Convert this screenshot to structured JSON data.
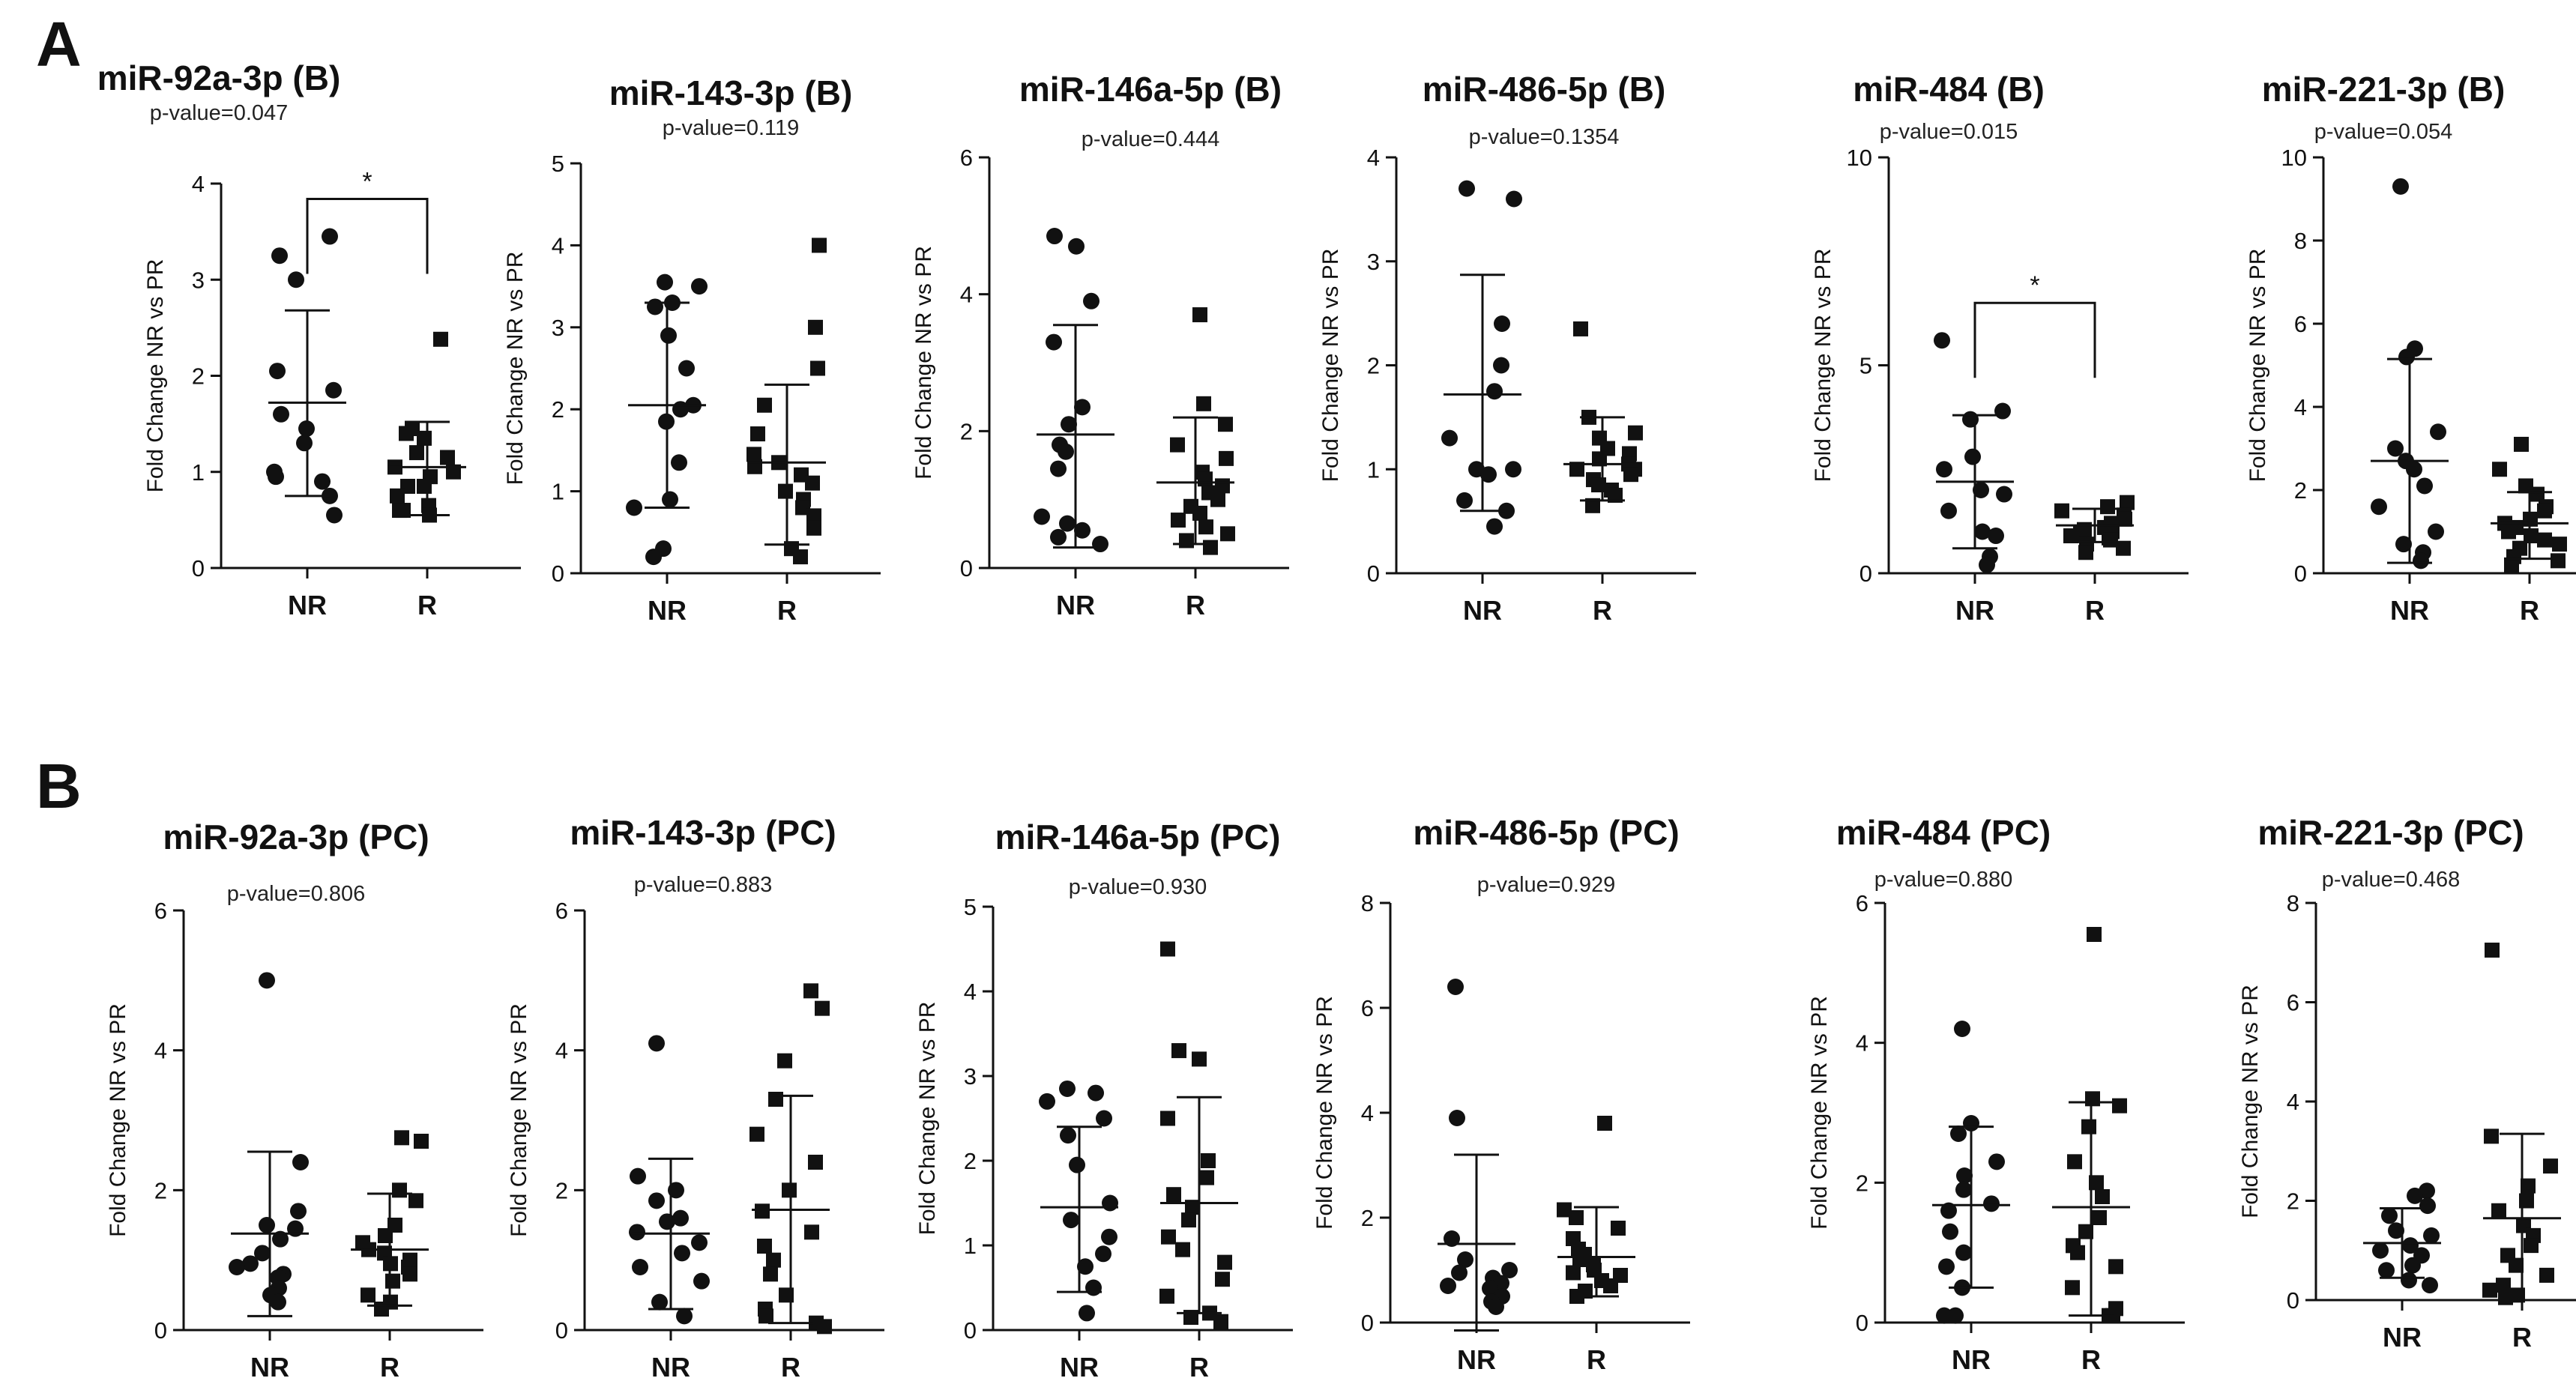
{
  "panels": [
    {
      "letter": "A"
    },
    {
      "letter": "B"
    }
  ],
  "chart_data": [
    {
      "type": "scatter",
      "panel": "A",
      "title": "miR-92a-3p (B)",
      "pvalue": "p-value=0.047",
      "ylabel": "Fold Change NR vs PR",
      "ylim": [
        0,
        4
      ],
      "yticks": [
        0,
        1,
        2,
        3,
        4
      ],
      "categories": [
        "NR",
        "R"
      ],
      "significance": "*",
      "zero_line": false,
      "series": [
        {
          "name": "NR",
          "marker": "circle",
          "values": [
            3.45,
            3.25,
            3.0,
            2.05,
            1.85,
            1.6,
            1.45,
            1.3,
            1.0,
            0.95,
            0.9,
            0.75,
            0.55
          ],
          "mean": 1.72,
          "sd_low": 0.75,
          "sd_high": 2.68
        },
        {
          "name": "R",
          "marker": "square",
          "values": [
            2.38,
            1.45,
            1.4,
            1.35,
            1.2,
            1.15,
            1.05,
            1.0,
            0.95,
            0.85,
            0.85,
            0.75,
            0.65,
            0.6,
            0.6,
            0.55
          ],
          "mean": 1.05,
          "sd_low": 0.55,
          "sd_high": 1.52
        }
      ]
    },
    {
      "type": "scatter",
      "panel": "A",
      "title": "miR-143-3p (B)",
      "pvalue": "p-value=0.119",
      "ylabel": "Fold Change NR vs PR",
      "ylim": [
        0,
        5
      ],
      "yticks": [
        0,
        1,
        2,
        3,
        4,
        5
      ],
      "categories": [
        "NR",
        "R"
      ],
      "significance": "",
      "zero_line": false,
      "series": [
        {
          "name": "NR",
          "marker": "circle",
          "values": [
            3.55,
            3.5,
            3.3,
            3.25,
            2.9,
            2.5,
            2.05,
            2.0,
            1.85,
            1.35,
            0.9,
            0.8,
            0.3,
            0.2
          ],
          "mean": 2.05,
          "sd_low": 0.8,
          "sd_high": 3.3
        },
        {
          "name": "R",
          "marker": "square",
          "values": [
            4.0,
            3.0,
            2.5,
            2.05,
            1.7,
            1.45,
            1.35,
            1.3,
            1.2,
            1.1,
            1.0,
            0.9,
            0.8,
            0.7,
            0.55,
            0.3,
            0.2
          ],
          "mean": 1.35,
          "sd_low": 0.35,
          "sd_high": 2.3
        }
      ]
    },
    {
      "type": "scatter",
      "panel": "A",
      "title": "miR-146a-5p (B)",
      "pvalue": "p-value=0.444",
      "ylabel": "Fold Change NR vs PR",
      "ylim": [
        0,
        6
      ],
      "yticks": [
        0,
        2,
        4,
        6
      ],
      "categories": [
        "NR",
        "R"
      ],
      "significance": "",
      "zero_line": false,
      "series": [
        {
          "name": "NR",
          "marker": "circle",
          "values": [
            4.85,
            4.7,
            3.9,
            3.3,
            2.35,
            2.1,
            1.8,
            1.7,
            1.45,
            0.75,
            0.65,
            0.55,
            0.45,
            0.35
          ],
          "mean": 1.95,
          "sd_low": 0.3,
          "sd_high": 3.55
        },
        {
          "name": "R",
          "marker": "square",
          "values": [
            3.7,
            2.4,
            2.1,
            1.8,
            1.6,
            1.4,
            1.3,
            1.2,
            1.1,
            1.0,
            0.9,
            0.8,
            0.7,
            0.6,
            0.5,
            0.4,
            0.3
          ],
          "mean": 1.25,
          "sd_low": 0.35,
          "sd_high": 2.2
        }
      ]
    },
    {
      "type": "scatter",
      "panel": "A",
      "title": "miR-486-5p (B)",
      "pvalue": "p-value=0.1354",
      "ylabel": "Fold Change NR vs PR",
      "ylim": [
        0,
        4
      ],
      "yticks": [
        0,
        1,
        2,
        3,
        4
      ],
      "categories": [
        "NR",
        "R"
      ],
      "significance": "",
      "zero_line": false,
      "series": [
        {
          "name": "NR",
          "marker": "circle",
          "values": [
            3.7,
            3.6,
            2.4,
            2.0,
            1.75,
            1.3,
            1.0,
            1.0,
            0.95,
            0.7,
            0.6,
            0.45
          ],
          "mean": 1.72,
          "sd_low": 0.6,
          "sd_high": 2.87
        },
        {
          "name": "R",
          "marker": "square",
          "values": [
            2.35,
            1.5,
            1.35,
            1.3,
            1.2,
            1.15,
            1.1,
            1.05,
            1.0,
            1.0,
            0.95,
            0.9,
            0.85,
            0.8,
            0.75,
            0.65
          ],
          "mean": 1.05,
          "sd_low": 0.7,
          "sd_high": 1.5
        }
      ]
    },
    {
      "type": "scatter",
      "panel": "A",
      "title": "miR-484 (B)",
      "pvalue": "p-value=0.015",
      "ylabel": "Fold Change NR vs PR",
      "ylim": [
        0,
        10
      ],
      "yticks": [
        0,
        5,
        10
      ],
      "categories": [
        "NR",
        "R"
      ],
      "significance": "*",
      "zero_line": true,
      "series": [
        {
          "name": "NR",
          "marker": "circle",
          "values": [
            5.6,
            3.9,
            3.7,
            2.8,
            2.5,
            2.0,
            1.9,
            1.5,
            1.0,
            0.9,
            0.4,
            0.2
          ],
          "mean": 2.2,
          "sd_low": 0.6,
          "sd_high": 3.8
        },
        {
          "name": "R",
          "marker": "square",
          "values": [
            1.7,
            1.6,
            1.5,
            1.4,
            1.3,
            1.2,
            1.1,
            1.05,
            1.0,
            0.95,
            0.9,
            0.85,
            0.8,
            0.7,
            0.6,
            0.5
          ],
          "mean": 1.15,
          "sd_low": 0.75,
          "sd_high": 1.55
        }
      ]
    },
    {
      "type": "scatter",
      "panel": "A",
      "title": "miR-221-3p (B)",
      "pvalue": "p-value=0.054",
      "ylabel": "Fold Change NR vs PR",
      "ylim": [
        0,
        10
      ],
      "yticks": [
        0,
        2,
        4,
        6,
        8,
        10
      ],
      "categories": [
        "NR",
        "R"
      ],
      "significance": "",
      "zero_line": false,
      "series": [
        {
          "name": "NR",
          "marker": "circle",
          "values": [
            9.3,
            5.4,
            5.2,
            3.4,
            3.0,
            2.7,
            2.5,
            2.1,
            1.6,
            1.0,
            0.7,
            0.5,
            0.3
          ],
          "mean": 2.7,
          "sd_low": 0.25,
          "sd_high": 5.15
        },
        {
          "name": "R",
          "marker": "square",
          "values": [
            3.1,
            2.5,
            2.1,
            1.9,
            1.6,
            1.5,
            1.3,
            1.2,
            1.1,
            1.0,
            0.9,
            0.8,
            0.7,
            0.6,
            0.4,
            0.3,
            0.2
          ],
          "mean": 1.2,
          "sd_low": 0.35,
          "sd_high": 1.95
        }
      ]
    },
    {
      "type": "scatter",
      "panel": "B",
      "title": "miR-92a-3p (PC)",
      "pvalue": "p-value=0.806",
      "ylabel": "Fold Change NR vs PR",
      "ylim": [
        0,
        6
      ],
      "yticks": [
        0,
        2,
        4,
        6
      ],
      "categories": [
        "NR",
        "R"
      ],
      "significance": "",
      "zero_line": false,
      "series": [
        {
          "name": "NR",
          "marker": "circle",
          "values": [
            5.0,
            2.4,
            1.7,
            1.5,
            1.45,
            1.3,
            1.1,
            0.95,
            0.9,
            0.8,
            0.75,
            0.6,
            0.5,
            0.4
          ],
          "mean": 1.38,
          "sd_low": 0.2,
          "sd_high": 2.55
        },
        {
          "name": "R",
          "marker": "square",
          "values": [
            2.75,
            2.7,
            2.0,
            1.85,
            1.5,
            1.35,
            1.25,
            1.15,
            1.1,
            1.0,
            0.95,
            0.9,
            0.8,
            0.7,
            0.5,
            0.4,
            0.3
          ],
          "mean": 1.15,
          "sd_low": 0.35,
          "sd_high": 1.95
        }
      ]
    },
    {
      "type": "scatter",
      "panel": "B",
      "title": "miR-143-3p (PC)",
      "pvalue": "p-value=0.883",
      "ylabel": "Fold Change NR vs PR",
      "ylim": [
        0,
        6
      ],
      "yticks": [
        0,
        2,
        4,
        6
      ],
      "categories": [
        "NR",
        "R"
      ],
      "significance": "",
      "zero_line": false,
      "series": [
        {
          "name": "NR",
          "marker": "circle",
          "values": [
            4.1,
            2.2,
            2.0,
            1.85,
            1.6,
            1.55,
            1.4,
            1.25,
            1.1,
            0.9,
            0.7,
            0.4,
            0.2
          ],
          "mean": 1.38,
          "sd_low": 0.3,
          "sd_high": 2.45
        },
        {
          "name": "R",
          "marker": "square",
          "values": [
            4.85,
            4.6,
            3.85,
            3.3,
            2.8,
            2.4,
            2.0,
            1.7,
            1.4,
            1.2,
            1.0,
            0.8,
            0.5,
            0.3,
            0.2,
            0.1,
            0.05
          ],
          "mean": 1.72,
          "sd_low": 0.1,
          "sd_high": 3.35
        }
      ]
    },
    {
      "type": "scatter",
      "panel": "B",
      "title": "miR-146a-5p (PC)",
      "pvalue": "p-value=0.930",
      "ylabel": "Fold Change NR vs PR",
      "ylim": [
        0,
        5
      ],
      "yticks": [
        0,
        1,
        2,
        3,
        4,
        5
      ],
      "categories": [
        "NR",
        "R"
      ],
      "significance": "",
      "zero_line": false,
      "series": [
        {
          "name": "NR",
          "marker": "circle",
          "values": [
            2.85,
            2.8,
            2.7,
            2.5,
            2.3,
            1.95,
            1.5,
            1.3,
            1.1,
            0.9,
            0.75,
            0.5,
            0.2
          ],
          "mean": 1.45,
          "sd_low": 0.45,
          "sd_high": 2.4
        },
        {
          "name": "R",
          "marker": "square",
          "values": [
            4.5,
            3.3,
            3.2,
            2.5,
            2.0,
            1.8,
            1.6,
            1.45,
            1.3,
            1.1,
            0.95,
            0.8,
            0.6,
            0.4,
            0.2,
            0.15,
            0.1
          ],
          "mean": 1.5,
          "sd_low": 0.2,
          "sd_high": 2.75
        }
      ]
    },
    {
      "type": "scatter",
      "panel": "B",
      "title": "miR-486-5p (PC)",
      "pvalue": "p-value=0.929",
      "ylabel": "Fold Change NR vs PR",
      "ylim": [
        0,
        8
      ],
      "yticks": [
        0,
        2,
        4,
        6,
        8
      ],
      "categories": [
        "NR",
        "R"
      ],
      "significance": "",
      "zero_line": true,
      "series": [
        {
          "name": "NR",
          "marker": "circle",
          "values": [
            6.4,
            3.9,
            1.6,
            1.2,
            1.0,
            0.95,
            0.85,
            0.75,
            0.7,
            0.65,
            0.5,
            0.4,
            0.3
          ],
          "mean": 1.5,
          "sd_low": -0.15,
          "sd_high": 3.2
        },
        {
          "name": "R",
          "marker": "square",
          "values": [
            3.8,
            2.15,
            2.0,
            1.8,
            1.6,
            1.4,
            1.3,
            1.2,
            1.1,
            1.0,
            0.95,
            0.9,
            0.8,
            0.7,
            0.6,
            0.5
          ],
          "mean": 1.25,
          "sd_low": 0.5,
          "sd_high": 2.2
        }
      ]
    },
    {
      "type": "scatter",
      "panel": "B",
      "title": "miR-484 (PC)",
      "pvalue": "p-value=0.880",
      "ylabel": "Fold Change NR vs PR",
      "ylim": [
        0,
        6
      ],
      "yticks": [
        0,
        2,
        4,
        6
      ],
      "categories": [
        "NR",
        "R"
      ],
      "significance": "",
      "zero_line": false,
      "series": [
        {
          "name": "NR",
          "marker": "circle",
          "values": [
            4.2,
            2.85,
            2.7,
            2.3,
            2.1,
            1.9,
            1.7,
            1.6,
            1.3,
            1.0,
            0.8,
            0.5,
            0.1,
            0.1
          ],
          "mean": 1.68,
          "sd_low": 0.5,
          "sd_high": 2.8
        },
        {
          "name": "R",
          "marker": "square",
          "values": [
            5.55,
            3.2,
            3.1,
            2.8,
            2.3,
            2.0,
            1.8,
            1.5,
            1.3,
            1.1,
            1.0,
            0.8,
            0.5,
            0.2,
            0.1,
            0.1
          ],
          "mean": 1.65,
          "sd_low": 0.1,
          "sd_high": 3.15
        }
      ]
    },
    {
      "type": "scatter",
      "panel": "B",
      "title": "miR-221-3p (PC)",
      "pvalue": "p-value=0.468",
      "ylabel": "Fold Change NR vs PR",
      "ylim": [
        0,
        8
      ],
      "yticks": [
        0,
        2,
        4,
        6,
        8
      ],
      "categories": [
        "NR",
        "R"
      ],
      "significance": "",
      "zero_line": true,
      "series": [
        {
          "name": "NR",
          "marker": "circle",
          "values": [
            2.2,
            2.1,
            1.9,
            1.7,
            1.4,
            1.3,
            1.1,
            1.0,
            0.9,
            0.7,
            0.6,
            0.4,
            0.3
          ],
          "mean": 1.15,
          "sd_low": 0.45,
          "sd_high": 1.85
        },
        {
          "name": "R",
          "marker": "square",
          "values": [
            7.05,
            3.3,
            2.7,
            2.3,
            2.0,
            1.8,
            1.5,
            1.3,
            1.1,
            0.9,
            0.7,
            0.5,
            0.3,
            0.2,
            0.1,
            0.05
          ],
          "mean": 1.65,
          "sd_low": 0.0,
          "sd_high": 3.35
        }
      ]
    }
  ]
}
